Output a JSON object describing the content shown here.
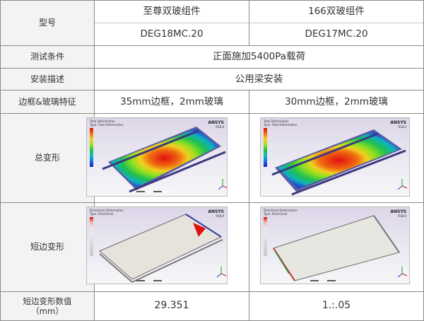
{
  "header": {
    "model_label": "型号",
    "product_a": "至尊双玻组件",
    "product_b": "166双玻组件",
    "code_a": "DEG18MC.20",
    "code_b": "DEG17MC.20"
  },
  "rows": {
    "test_condition": {
      "label": "测试条件",
      "value": "正面施加5400Pa载荷"
    },
    "installation": {
      "label": "安装描述",
      "value": "公用梁安装"
    },
    "frame_glass": {
      "label": "边框&玻璃特征",
      "value_a": "35mm边框，2mm玻璃",
      "value_b": "30mm边框，2mm玻璃"
    },
    "total_deform": {
      "label": "总变形"
    },
    "short_edge_deform": {
      "label": "短边变形"
    },
    "short_edge_value": {
      "label": "短边变形数值\n（mm）",
      "value_a": "29.351",
      "value_b": "1.:.05"
    }
  },
  "sim": {
    "brand": "ANSYS",
    "colors": {
      "max": "#e01010",
      "mid": "#20c040",
      "min": "#2020c0"
    }
  }
}
